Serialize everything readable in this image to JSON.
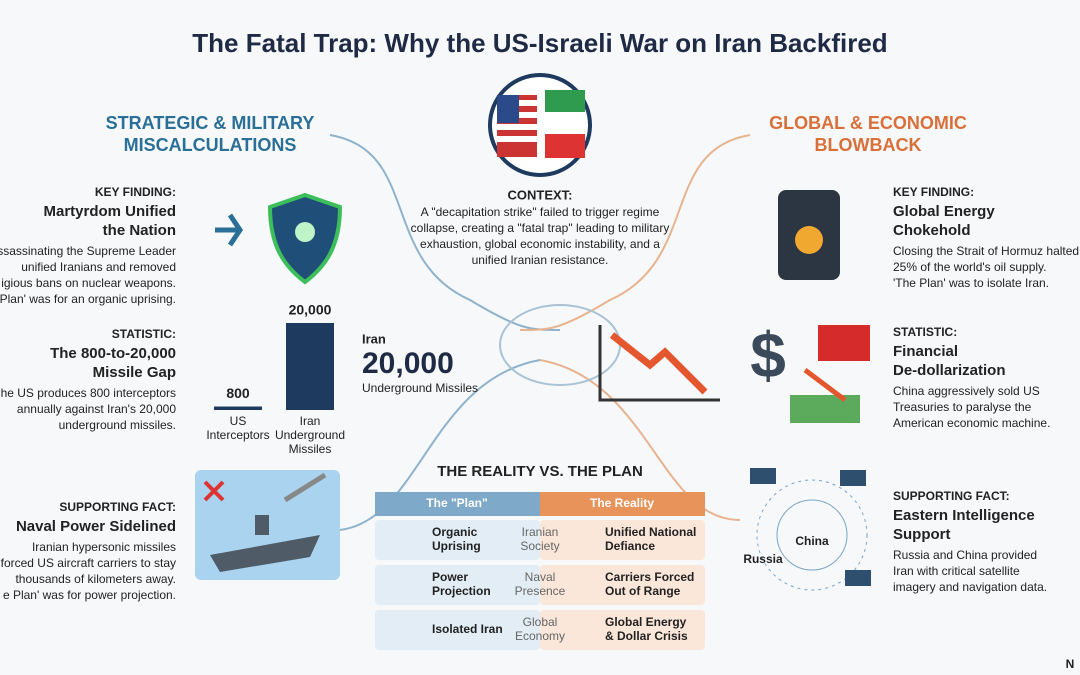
{
  "title": "The Fatal Trap: Why the US-Israeli War on Iran Backfired",
  "context": {
    "label": "CONTEXT:",
    "text": [
      "A \"decapitation strike\" failed to trigger regime",
      "collapse, creating a \"fatal trap\" leading to military",
      "exhaustion, global economic instability, and a",
      "unified Iranian resistance."
    ]
  },
  "left": {
    "heading": [
      "STRATEGIC & MILITARY",
      "MISCALCULATIONS"
    ],
    "sections": [
      {
        "label": "KEY FINDING:",
        "title": [
          "Martyrdom Unified",
          "the Nation"
        ],
        "body": [
          "ssassinating the Supreme Leader",
          "unified Iranians and removed",
          "igious bans on nuclear weapons.",
          "Plan' was for an organic uprising."
        ]
      },
      {
        "label": "STATISTIC:",
        "title": [
          "The 800-to-20,000",
          "Missile Gap"
        ],
        "body": [
          "he US produces 800 interceptors",
          "annually against Iran's 20,000",
          "underground missiles."
        ]
      },
      {
        "label": "SUPPORTING FACT:",
        "title": [
          "Naval Power Sidelined"
        ],
        "body": [
          "Iranian hypersonic missiles",
          "forced US aircraft carriers to stay",
          "thousands of kilometers away.",
          "e Plan' was for power projection."
        ]
      }
    ]
  },
  "right": {
    "heading": [
      "GLOBAL & ECONOMIC",
      "BLOWBACK"
    ],
    "sections": [
      {
        "label": "KEY FINDING:",
        "title": [
          "Global Energy",
          "Chokehold"
        ],
        "body": [
          "Closing the Strait of Hormuz halted",
          "25% of the world's oil supply.",
          "'The Plan' was to isolate Iran."
        ]
      },
      {
        "label": "STATISTIC:",
        "title": [
          "Financial",
          "De-dollarization"
        ],
        "body": [
          "China aggressively sold US",
          "Treasuries to paralyse the",
          "American economic machine."
        ]
      },
      {
        "label": "SUPPORTING FACT:",
        "title": [
          "Eastern Intelligence",
          "Support"
        ],
        "body": [
          "Russia and China provided",
          "Iran with critical satellite",
          "imagery and navigation data."
        ]
      }
    ]
  },
  "bar_chart": {
    "type": "bar",
    "categories": [
      [
        "US",
        "Interceptors"
      ],
      [
        "Iran",
        "Underground",
        "Missiles"
      ]
    ],
    "values": [
      800,
      20000
    ],
    "value_labels": [
      "800",
      "20,000"
    ],
    "color": "#1f3a5f"
  },
  "callout": {
    "top": "Iran",
    "number": "20,000",
    "bottom": "Underground Missiles"
  },
  "satellite_labels": [
    "China",
    "Russia"
  ],
  "table": {
    "title": "THE REALITY VS. THE PLAN",
    "headers": [
      "The \"Plan\"",
      "The Reality"
    ],
    "rows": [
      [
        [
          "Organic",
          "Uprising"
        ],
        [
          "Iranian",
          "Society"
        ],
        [
          "Unified National",
          "Defiance"
        ]
      ],
      [
        [
          "Power",
          "Projection"
        ],
        [
          "Naval",
          "Presence"
        ],
        [
          "Carriers Forced",
          "Out of Range"
        ]
      ],
      [
        [
          "Isolated Iran"
        ],
        [
          "Global",
          "Economy"
        ],
        [
          "Global Energy",
          "& Dollar Crisis"
        ]
      ]
    ]
  },
  "watermark": "N"
}
